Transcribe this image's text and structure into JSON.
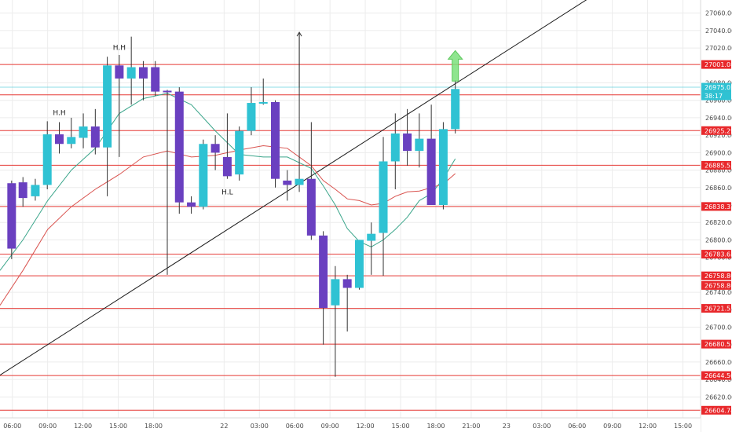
{
  "chart_data": {
    "type": "candlestick",
    "title": "",
    "y_range": [
      26596,
      27075
    ],
    "x_range": [
      -0.35,
      19.5
    ],
    "colors": {
      "bull": "#2fc2d3",
      "bear": "#6a40c0",
      "wick": "#333333",
      "level": "#e53935",
      "trendline": "#1a1a1a",
      "ma_fast": "#3aa58a",
      "ma_slow": "#d9534f",
      "grid": "#ececec",
      "axis_text": "#4a4a4a",
      "label_red": "#e8282b",
      "label_cyan": "#2fc2d3",
      "arrow": "#7be07b"
    },
    "x_ticks": [
      {
        "x": 0,
        "label": "06:00"
      },
      {
        "x": 1,
        "label": "09:00"
      },
      {
        "x": 2,
        "label": "12:00"
      },
      {
        "x": 3,
        "label": "15:00"
      },
      {
        "x": 4,
        "label": "18:00"
      },
      {
        "x": 6,
        "label": "22"
      },
      {
        "x": 7,
        "label": "03:00"
      },
      {
        "x": 8,
        "label": "06:00"
      },
      {
        "x": 9,
        "label": "09:00"
      },
      {
        "x": 10,
        "label": "12:00"
      },
      {
        "x": 11,
        "label": "15:00"
      },
      {
        "x": 12,
        "label": "18:00"
      },
      {
        "x": 13,
        "label": "21:00"
      },
      {
        "x": 14,
        "label": "23"
      },
      {
        "x": 15,
        "label": "03:00"
      },
      {
        "x": 16,
        "label": "06:00"
      },
      {
        "x": 17,
        "label": "09:00"
      },
      {
        "x": 18,
        "label": "12:00"
      },
      {
        "x": 19,
        "label": "15:00"
      }
    ],
    "y_ticks": [
      "27060.00",
      "27040.00",
      "27020.00",
      "26980.00",
      "26960.00",
      "26940.00",
      "26920.00",
      "26900.00",
      "26880.00",
      "26860.00",
      "26840.00",
      "26820.00",
      "26800.00",
      "26780.00",
      "26740.00",
      "26720.00",
      "26700.00",
      "26680.00",
      "26660.00",
      "26640.00",
      "26620.00"
    ],
    "levels": [
      {
        "value": 27001.08,
        "label": "27001.08"
      },
      {
        "value": 26966.29,
        "label": "26966.29"
      },
      {
        "value": 26925.29,
        "label": "26925.29"
      },
      {
        "value": 26885.53,
        "label": "26885.53"
      },
      {
        "value": 26838.32,
        "label": "26838.32"
      },
      {
        "value": 26783.65,
        "label": "26783.65"
      },
      {
        "value": 26758.8,
        "label": "26758.80"
      },
      {
        "value": 26721.53,
        "label": "26721.53"
      },
      {
        "value": 26680.53,
        "label": "26680.53"
      },
      {
        "value": 26644.5,
        "label": "26644.50"
      },
      {
        "value": 26604.74,
        "label": "26604.74"
      }
    ],
    "current_price": {
      "value": 26975.03,
      "label": "26975.03",
      "countdown": "38:17"
    },
    "extra_label": {
      "value": 26758.8,
      "label": "26758.80"
    },
    "candles": [
      {
        "x": -0.02,
        "o": 26865,
        "h": 26868,
        "l": 26778,
        "c": 26790
      },
      {
        "x": 0.3,
        "o": 26866,
        "h": 26872,
        "l": 26838,
        "c": 26848
      },
      {
        "x": 0.65,
        "o": 26850,
        "h": 26870,
        "l": 26845,
        "c": 26863
      },
      {
        "x": 0.99,
        "o": 26863,
        "h": 26936,
        "l": 26858,
        "c": 26921
      },
      {
        "x": 1.33,
        "o": 26921,
        "h": 26935,
        "l": 26899,
        "c": 26910
      },
      {
        "x": 1.67,
        "o": 26910,
        "h": 26940,
        "l": 26905,
        "c": 26918
      },
      {
        "x": 2.01,
        "o": 26917,
        "h": 26945,
        "l": 26905,
        "c": 26930
      },
      {
        "x": 2.35,
        "o": 26930,
        "h": 26950,
        "l": 26898,
        "c": 26906
      },
      {
        "x": 2.69,
        "o": 26906,
        "h": 27010,
        "l": 26850,
        "c": 27000
      },
      {
        "x": 3.03,
        "o": 27000,
        "h": 27012,
        "l": 26895,
        "c": 26985
      },
      {
        "x": 3.37,
        "o": 26985,
        "h": 27033,
        "l": 26955,
        "c": 26998
      },
      {
        "x": 3.71,
        "o": 26998,
        "h": 27005,
        "l": 26960,
        "c": 26985
      },
      {
        "x": 4.05,
        "o": 26998,
        "h": 27005,
        "l": 26965,
        "c": 26970
      },
      {
        "x": 4.39,
        "o": 26971,
        "h": 26972,
        "l": 26760,
        "c": 26970
      },
      {
        "x": 4.73,
        "o": 26970,
        "h": 26975,
        "l": 26830,
        "c": 26843
      },
      {
        "x": 5.07,
        "o": 26843,
        "h": 26850,
        "l": 26830,
        "c": 26838
      },
      {
        "x": 5.41,
        "o": 26838,
        "h": 26915,
        "l": 26835,
        "c": 26910
      },
      {
        "x": 5.75,
        "o": 26910,
        "h": 26920,
        "l": 26880,
        "c": 26900
      },
      {
        "x": 6.09,
        "o": 26895,
        "h": 26945,
        "l": 26870,
        "c": 26873
      },
      {
        "x": 6.43,
        "o": 26875,
        "h": 26930,
        "l": 26868,
        "c": 26925
      },
      {
        "x": 6.77,
        "o": 26925,
        "h": 26975,
        "l": 26920,
        "c": 26957
      },
      {
        "x": 7.11,
        "o": 26957,
        "h": 26985,
        "l": 26955,
        "c": 26958
      },
      {
        "x": 7.45,
        "o": 26958,
        "h": 26960,
        "l": 26860,
        "c": 26870
      },
      {
        "x": 7.79,
        "o": 26868,
        "h": 26880,
        "l": 26845,
        "c": 26863
      },
      {
        "x": 8.13,
        "o": 26863,
        "h": 27037,
        "l": 26855,
        "c": 26870
      },
      {
        "x": 8.47,
        "o": 26870,
        "h": 26935,
        "l": 26800,
        "c": 26805
      },
      {
        "x": 8.81,
        "o": 26805,
        "h": 26810,
        "l": 26680,
        "c": 26722
      },
      {
        "x": 9.15,
        "o": 26725,
        "h": 26770,
        "l": 26643,
        "c": 26755
      },
      {
        "x": 9.49,
        "o": 26755,
        "h": 26760,
        "l": 26695,
        "c": 26745
      },
      {
        "x": 9.83,
        "o": 26745,
        "h": 26800,
        "l": 26743,
        "c": 26800
      },
      {
        "x": 10.17,
        "o": 26799,
        "h": 26820,
        "l": 26760,
        "c": 26807
      },
      {
        "x": 10.51,
        "o": 26808,
        "h": 26918,
        "l": 26759,
        "c": 26890
      },
      {
        "x": 10.85,
        "o": 26890,
        "h": 26945,
        "l": 26858,
        "c": 26922
      },
      {
        "x": 11.19,
        "o": 26922,
        "h": 26950,
        "l": 26885,
        "c": 26902
      },
      {
        "x": 11.53,
        "o": 26902,
        "h": 26945,
        "l": 26883,
        "c": 26916
      },
      {
        "x": 11.87,
        "o": 26916,
        "h": 26955,
        "l": 26840,
        "c": 26840
      },
      {
        "x": 12.21,
        "o": 26840,
        "h": 26935,
        "l": 26835,
        "c": 26927
      },
      {
        "x": 12.55,
        "o": 26927,
        "h": 26983,
        "l": 26922,
        "c": 26973
      }
    ],
    "ma_fast": [
      [
        -0.35,
        26765
      ],
      [
        0.3,
        26800
      ],
      [
        1,
        26845
      ],
      [
        1.67,
        26880
      ],
      [
        2.35,
        26905
      ],
      [
        3.03,
        26945
      ],
      [
        3.71,
        26962
      ],
      [
        4.39,
        26968
      ],
      [
        5.07,
        26955
      ],
      [
        5.75,
        26925
      ],
      [
        6.43,
        26898
      ],
      [
        7.11,
        26895
      ],
      [
        7.79,
        26895
      ],
      [
        8.47,
        26882
      ],
      [
        8.81,
        26862
      ],
      [
        9.15,
        26840
      ],
      [
        9.49,
        26813
      ],
      [
        9.83,
        26798
      ],
      [
        10.17,
        26792
      ],
      [
        10.51,
        26800
      ],
      [
        10.85,
        26812
      ],
      [
        11.19,
        26826
      ],
      [
        11.53,
        26845
      ],
      [
        11.87,
        26853
      ],
      [
        12.21,
        26870
      ],
      [
        12.55,
        26893
      ]
    ],
    "ma_slow": [
      [
        -0.35,
        26725
      ],
      [
        0.3,
        26765
      ],
      [
        1,
        26812
      ],
      [
        1.67,
        26838
      ],
      [
        2.35,
        26858
      ],
      [
        3.03,
        26875
      ],
      [
        3.71,
        26895
      ],
      [
        4.39,
        26902
      ],
      [
        5.07,
        26895
      ],
      [
        5.75,
        26897
      ],
      [
        6.43,
        26903
      ],
      [
        7.11,
        26908
      ],
      [
        7.79,
        26905
      ],
      [
        8.47,
        26885
      ],
      [
        8.81,
        26868
      ],
      [
        9.15,
        26858
      ],
      [
        9.49,
        26847
      ],
      [
        9.83,
        26845
      ],
      [
        10.17,
        26840
      ],
      [
        10.51,
        26842
      ],
      [
        10.85,
        26850
      ],
      [
        11.19,
        26855
      ],
      [
        11.53,
        26856
      ],
      [
        11.87,
        26860
      ],
      [
        12.21,
        26864
      ],
      [
        12.55,
        26876
      ]
    ],
    "trendline": [
      [
        -0.35,
        26645
      ],
      [
        16.45,
        27080
      ]
    ],
    "annotations": [
      {
        "text": "H.H",
        "x": 1.33,
        "y": 26943
      },
      {
        "text": "H.H",
        "x": 3.03,
        "y": 27018
      },
      {
        "text": "H.L",
        "x": 6.09,
        "y": 26852
      }
    ],
    "up_arrows": [
      {
        "x": 8.13,
        "y_from": 26975,
        "y_to": 27038,
        "style": "thin"
      },
      {
        "x": 12.55,
        "y_from": 26982,
        "y_to": 27017,
        "style": "fat"
      }
    ]
  }
}
